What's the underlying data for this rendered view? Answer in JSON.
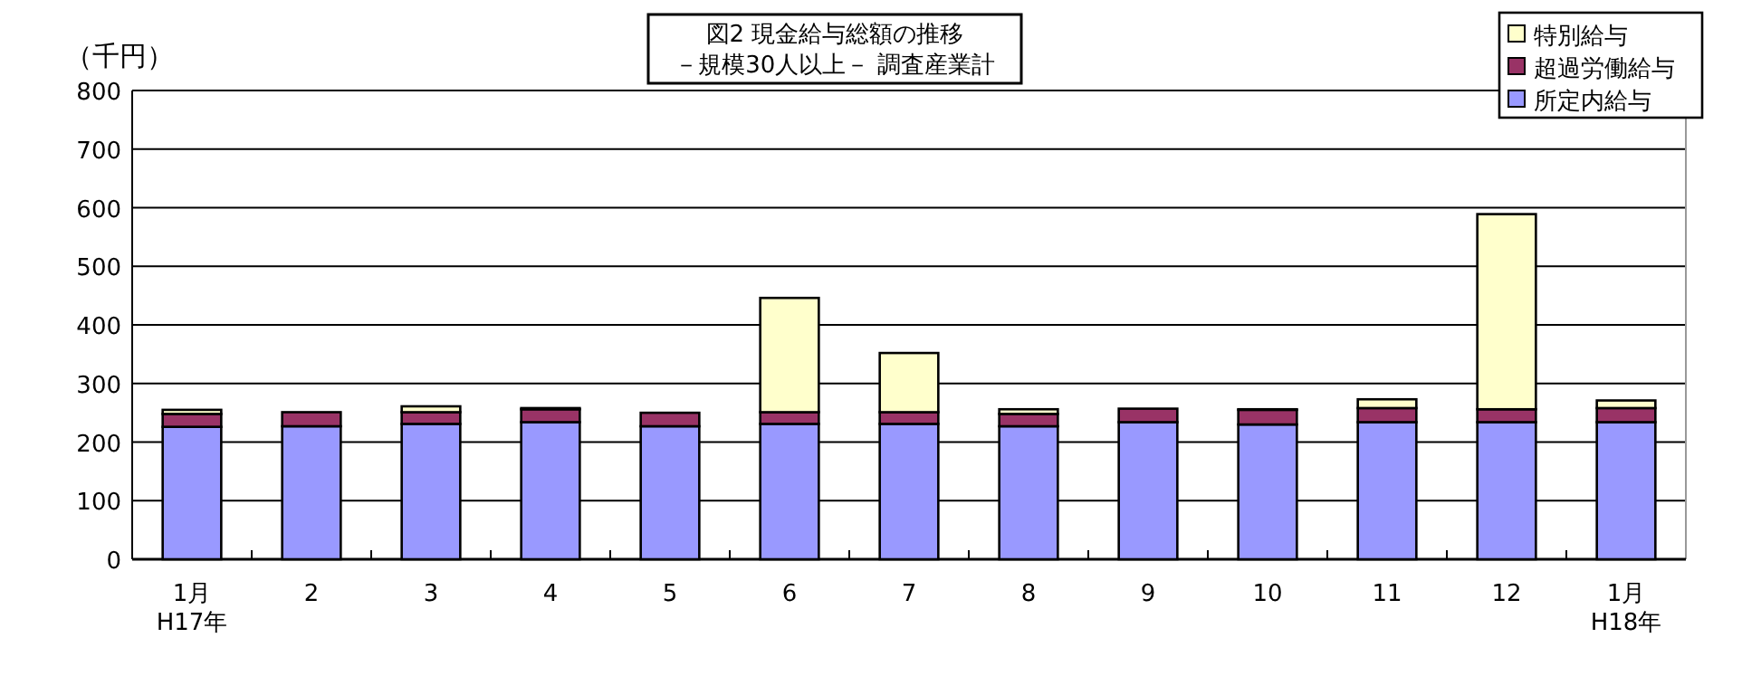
{
  "chart_data": {
    "type": "bar",
    "stacked": true,
    "title": "図2  現金給与総額の推移",
    "subtitle": "－規模30人以上－  調査産業計",
    "ylabel": "（千円）",
    "categories": [
      "1月\nH17年",
      "2",
      "3",
      "4",
      "5",
      "6",
      "7",
      "8",
      "9",
      "10",
      "11",
      "12",
      "1月\nH18年"
    ],
    "series": [
      {
        "name": "所定内給与",
        "color": "#9999ff",
        "values": [
          226,
          227,
          231,
          234,
          227,
          231,
          231,
          227,
          234,
          230,
          234,
          234,
          234
        ]
      },
      {
        "name": "超過労働給与",
        "color": "#993366",
        "values": [
          22,
          24,
          20,
          22,
          23,
          20,
          20,
          21,
          23,
          25,
          24,
          22,
          24
        ]
      },
      {
        "name": "特別給与",
        "color": "#ffffcc",
        "values": [
          7,
          null,
          10,
          2,
          null,
          195,
          101,
          8,
          null,
          1,
          15,
          333,
          13
        ]
      }
    ],
    "ylim": [
      0,
      800
    ],
    "yticks": [
      0,
      100,
      200,
      300,
      400,
      500,
      600,
      700,
      800
    ],
    "grid": "y",
    "legend": "top right"
  }
}
